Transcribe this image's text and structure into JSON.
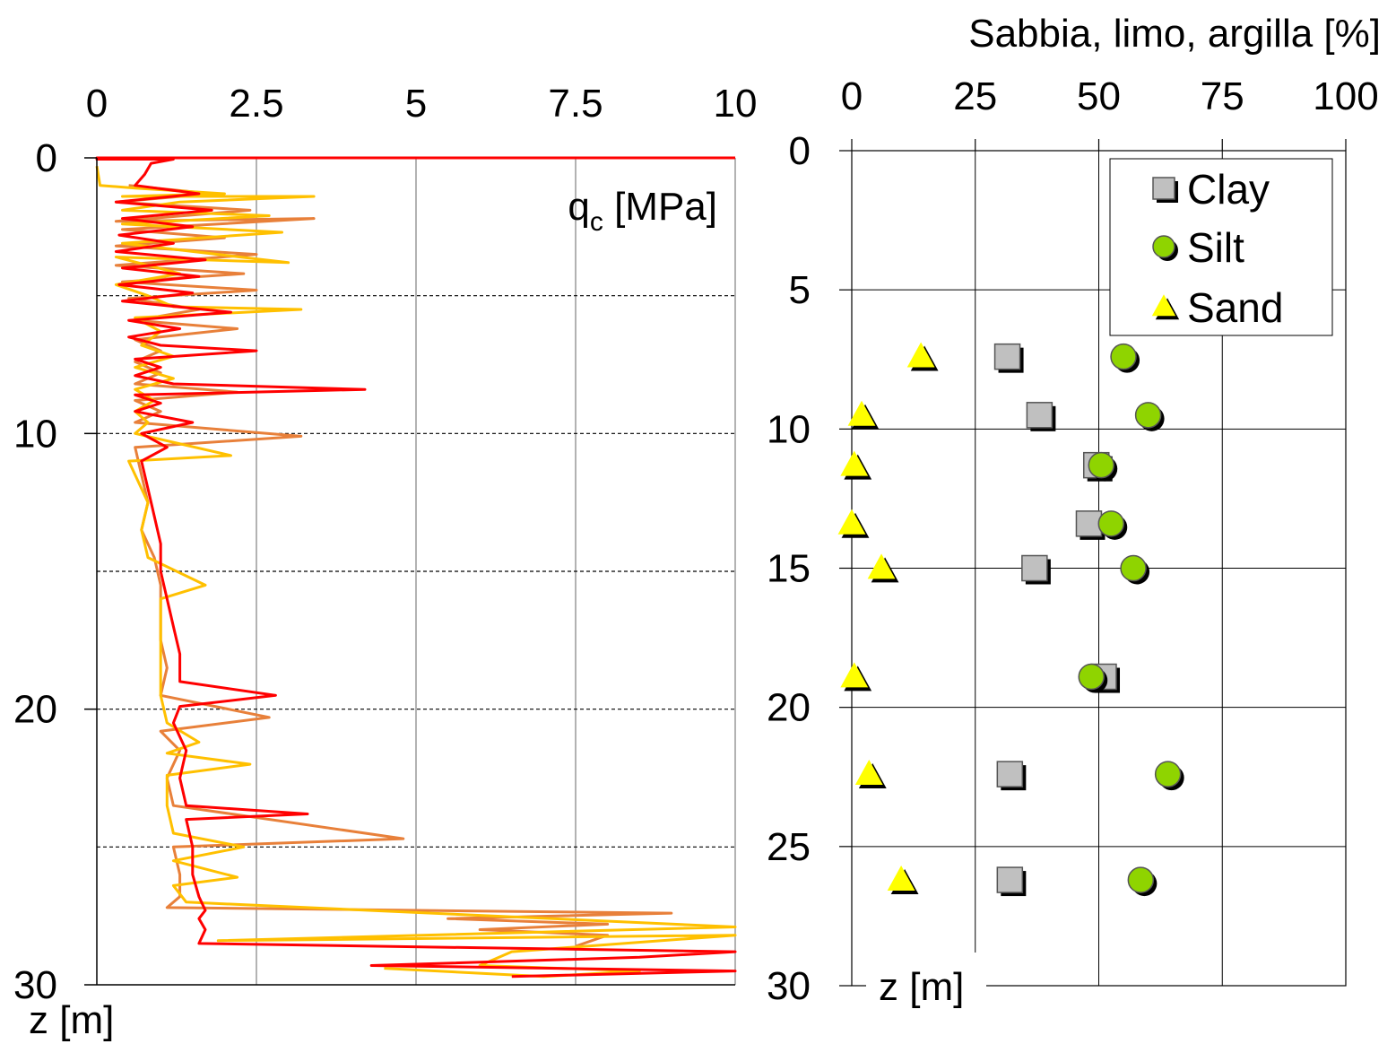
{
  "chart_data": [
    {
      "type": "line",
      "series_label": "q",
      "series_label_sub": "c",
      "series_label_unit": " [MPa]",
      "ylabel": "z [m]",
      "x_ticks": [
        "0",
        "2.5",
        "5",
        "7.5",
        "10"
      ],
      "y_ticks": [
        "0",
        "10",
        "20",
        "30"
      ],
      "xlim": [
        0,
        10
      ],
      "ylim": [
        0,
        30
      ],
      "y_inverted": true,
      "x_axis_position": "top",
      "grid_vertical": [
        2.5,
        5,
        7.5
      ],
      "grid_dashed_depths": [
        5,
        10,
        15,
        20,
        25
      ],
      "series": [
        {
          "color": "#ff0000",
          "points": [
            [
              10,
              0
            ],
            [
              0,
              0
            ],
            [
              0,
              0.05
            ],
            [
              1.2,
              0.05
            ],
            [
              0.85,
              0.2
            ],
            [
              0.75,
              0.6
            ],
            [
              0.6,
              1.0
            ],
            [
              1.6,
              1.3
            ],
            [
              0.3,
              1.6
            ],
            [
              1.8,
              1.9
            ],
            [
              0.4,
              2.2
            ],
            [
              1.5,
              2.5
            ],
            [
              0.35,
              2.8
            ],
            [
              1.2,
              3.1
            ],
            [
              0.3,
              3.4
            ],
            [
              1.7,
              3.7
            ],
            [
              0.4,
              4.0
            ],
            [
              1.6,
              4.3
            ],
            [
              0.35,
              4.6
            ],
            [
              1.5,
              4.9
            ],
            [
              0.4,
              5.2
            ],
            [
              2.1,
              5.6
            ],
            [
              0.5,
              5.9
            ],
            [
              1.3,
              6.2
            ],
            [
              0.5,
              6.5
            ],
            [
              1.0,
              6.8
            ],
            [
              2.5,
              7.0
            ],
            [
              0.6,
              7.3
            ],
            [
              1.0,
              7.6
            ],
            [
              0.6,
              7.9
            ],
            [
              1.2,
              8.2
            ],
            [
              4.2,
              8.4
            ],
            [
              0.6,
              8.6
            ],
            [
              1.0,
              8.9
            ],
            [
              0.6,
              9.2
            ],
            [
              1.5,
              9.6
            ],
            [
              0.7,
              10.0
            ],
            [
              1.1,
              10.5
            ],
            [
              0.7,
              11.0
            ],
            [
              0.8,
              12.0
            ],
            [
              0.9,
              13.0
            ],
            [
              1.0,
              14.0
            ],
            [
              1.0,
              15.0
            ],
            [
              1.1,
              16.0
            ],
            [
              1.2,
              17.0
            ],
            [
              1.3,
              18.0
            ],
            [
              1.3,
              19.0
            ],
            [
              2.8,
              19.5
            ],
            [
              1.3,
              19.9
            ],
            [
              1.2,
              20.5
            ],
            [
              1.4,
              21.5
            ],
            [
              1.3,
              22.5
            ],
            [
              1.4,
              23.5
            ],
            [
              3.3,
              23.8
            ],
            [
              1.4,
              24.0
            ],
            [
              1.5,
              25.0
            ],
            [
              1.5,
              26.0
            ],
            [
              1.6,
              26.8
            ],
            [
              1.7,
              27.3
            ],
            [
              1.6,
              27.6
            ],
            [
              1.7,
              28.0
            ],
            [
              1.6,
              28.5
            ],
            [
              10,
              28.8
            ],
            [
              8.5,
              29.0
            ],
            [
              4.3,
              29.3
            ],
            [
              10,
              29.5
            ],
            [
              6.5,
              29.7
            ]
          ]
        },
        {
          "color": "#e8803a",
          "points": [
            [
              0.5,
              1.0
            ],
            [
              1.8,
              1.3
            ],
            [
              0.3,
              1.6
            ],
            [
              2.4,
              1.9
            ],
            [
              0.3,
              2.3
            ],
            [
              3.4,
              2.2
            ],
            [
              0.4,
              2.6
            ],
            [
              2.0,
              2.9
            ],
            [
              0.3,
              3.2
            ],
            [
              2.5,
              3.5
            ],
            [
              0.3,
              3.9
            ],
            [
              2.3,
              4.2
            ],
            [
              0.4,
              4.5
            ],
            [
              2.5,
              4.8
            ],
            [
              0.5,
              5.1
            ],
            [
              1.6,
              5.5
            ],
            [
              0.6,
              5.9
            ],
            [
              2.2,
              6.2
            ],
            [
              0.6,
              6.6
            ],
            [
              1.0,
              7.0
            ],
            [
              0.6,
              7.4
            ],
            [
              1.0,
              7.8
            ],
            [
              0.6,
              8.2
            ],
            [
              2.2,
              8.5
            ],
            [
              0.6,
              8.8
            ],
            [
              1.0,
              9.2
            ],
            [
              0.6,
              9.6
            ],
            [
              3.2,
              10.1
            ],
            [
              0.6,
              10.5
            ],
            [
              0.7,
              11.5
            ],
            [
              0.8,
              12.5
            ],
            [
              0.7,
              13.5
            ],
            [
              0.9,
              14.5
            ],
            [
              1.0,
              15.5
            ],
            [
              1.0,
              16.5
            ],
            [
              1.0,
              17.5
            ],
            [
              1.1,
              18.5
            ],
            [
              1.0,
              19.5
            ],
            [
              2.7,
              20.3
            ],
            [
              1.0,
              20.8
            ],
            [
              1.3,
              21.5
            ],
            [
              1.1,
              22.5
            ],
            [
              1.2,
              23.5
            ],
            [
              4.8,
              24.7
            ],
            [
              1.2,
              25.0
            ],
            [
              1.3,
              26.0
            ],
            [
              1.3,
              26.8
            ],
            [
              1.1,
              27.2
            ],
            [
              9.0,
              27.4
            ],
            [
              5.5,
              27.6
            ],
            [
              8.0,
              27.8
            ],
            [
              6.0,
              28.0
            ],
            [
              8.0,
              28.2
            ],
            [
              7.5,
              28.6
            ]
          ]
        },
        {
          "color": "#ffc000",
          "points": [
            [
              0,
              0.3
            ],
            [
              0.05,
              1.0
            ],
            [
              0.6,
              1.1
            ],
            [
              2.0,
              1.3
            ],
            [
              0.4,
              1.4
            ],
            [
              3.4,
              1.4
            ],
            [
              1.3,
              1.6
            ],
            [
              0.4,
              1.9
            ],
            [
              2.7,
              2.1
            ],
            [
              0.4,
              2.4
            ],
            [
              2.9,
              2.7
            ],
            [
              0.4,
              3.1
            ],
            [
              3.0,
              3.8
            ],
            [
              0.3,
              3.6
            ],
            [
              1.3,
              4.2
            ],
            [
              0.3,
              4.6
            ],
            [
              0.8,
              5.0
            ],
            [
              1.2,
              5.4
            ],
            [
              3.2,
              5.5
            ],
            [
              0.6,
              5.8
            ],
            [
              1.0,
              6.3
            ],
            [
              0.7,
              6.8
            ],
            [
              1.2,
              7.2
            ],
            [
              0.6,
              7.6
            ],
            [
              1.2,
              8.0
            ],
            [
              0.6,
              8.4
            ],
            [
              0.9,
              8.8
            ],
            [
              0.6,
              9.2
            ],
            [
              0.8,
              9.6
            ],
            [
              0.6,
              10.0
            ],
            [
              2.1,
              10.8
            ],
            [
              0.5,
              11.0
            ],
            [
              0.8,
              12.5
            ],
            [
              0.7,
              13.5
            ],
            [
              0.8,
              14.5
            ],
            [
              1.7,
              15.5
            ],
            [
              1.0,
              16.0
            ],
            [
              1.0,
              17.5
            ],
            [
              1.0,
              18.5
            ],
            [
              1.0,
              19.5
            ],
            [
              1.1,
              20.5
            ],
            [
              1.6,
              21.2
            ],
            [
              1.1,
              21.6
            ],
            [
              2.4,
              22.0
            ],
            [
              1.1,
              22.4
            ],
            [
              1.1,
              23.5
            ],
            [
              1.2,
              24.5
            ],
            [
              2.3,
              25.0
            ],
            [
              1.2,
              25.5
            ],
            [
              2.2,
              26.1
            ],
            [
              1.2,
              26.4
            ],
            [
              1.4,
              27.0
            ],
            [
              10,
              27.9
            ],
            [
              1.9,
              28.4
            ],
            [
              10,
              28.2
            ],
            [
              6.5,
              28.8
            ],
            [
              6.0,
              29.3
            ],
            [
              8.5,
              29.5
            ],
            [
              7.0,
              29.7
            ],
            [
              4.5,
              29.4
            ]
          ]
        }
      ]
    },
    {
      "type": "scatter",
      "title": "Sabbia, limo, argilla [%]",
      "ylabel": "z [m]",
      "x_ticks": [
        "0",
        "25",
        "50",
        "75",
        "100"
      ],
      "y_ticks": [
        "0",
        "5",
        "10",
        "15",
        "20",
        "25",
        "30"
      ],
      "xlim": [
        0,
        100
      ],
      "ylim": [
        0,
        30
      ],
      "y_inverted": true,
      "x_axis_position": "top",
      "legend_position": "top-right",
      "series": [
        {
          "name": "Clay",
          "marker": "square",
          "color": "#c0c0c0",
          "points": [
            [
              31.5,
              7.4
            ],
            [
              38,
              9.5
            ],
            [
              49.5,
              11.3
            ],
            [
              48,
              13.4
            ],
            [
              37,
              15.0
            ],
            [
              51,
              18.9
            ],
            [
              32,
              22.4
            ],
            [
              32,
              26.2
            ]
          ]
        },
        {
          "name": "Silt",
          "marker": "circle",
          "color": "#8fd400",
          "points": [
            [
              55,
              7.4
            ],
            [
              60,
              9.5
            ],
            [
              50.5,
              11.3
            ],
            [
              52.5,
              13.4
            ],
            [
              57,
              15.0
            ],
            [
              48.5,
              18.9
            ],
            [
              64,
              22.4
            ],
            [
              58.5,
              26.2
            ]
          ]
        },
        {
          "name": "Sand",
          "marker": "triangle",
          "color": "#ffff00",
          "points": [
            [
              14,
              7.4
            ],
            [
              2,
              9.5
            ],
            [
              0.5,
              11.3
            ],
            [
              0,
              13.4
            ],
            [
              6,
              15.0
            ],
            [
              0.5,
              18.9
            ],
            [
              3.5,
              22.4
            ],
            [
              10,
              26.2
            ]
          ]
        }
      ]
    }
  ]
}
